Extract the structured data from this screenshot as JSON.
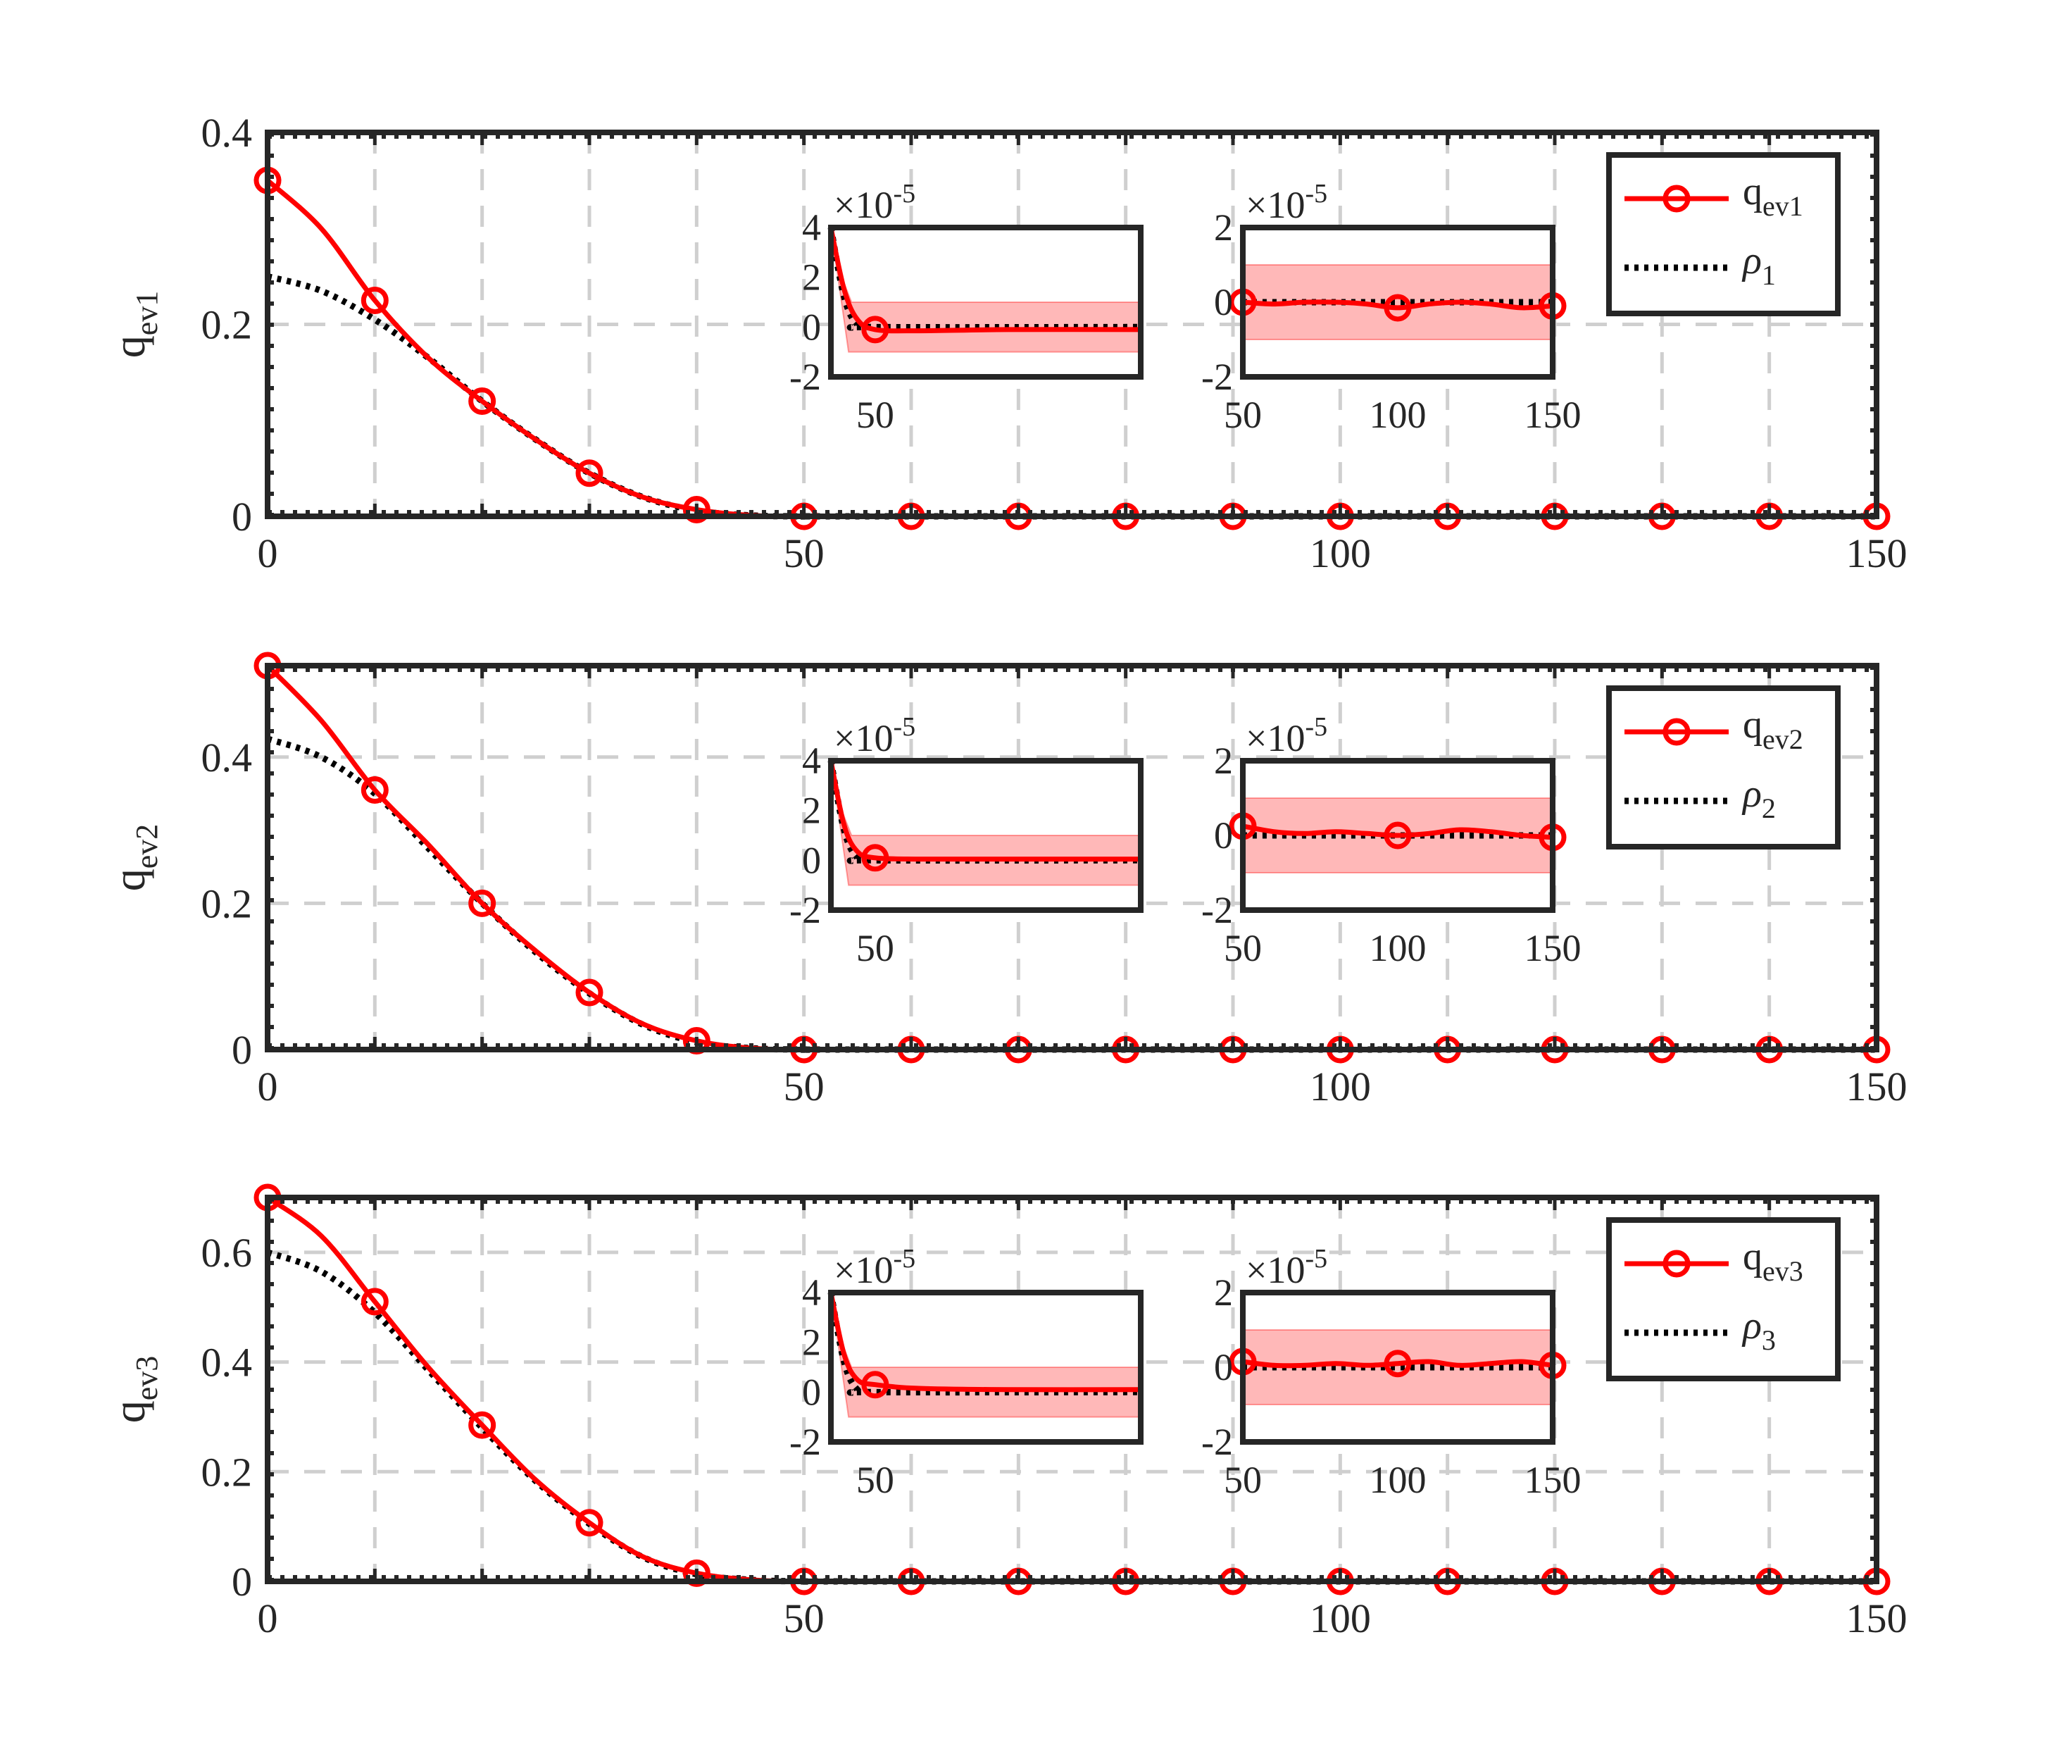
{
  "chart_data": [
    {
      "type": "line",
      "ylabel": "q",
      "ylabel_sub": "ev1",
      "xlim": [
        0,
        150
      ],
      "ylim": [
        0,
        0.4
      ],
      "xticks": [
        "0",
        "50",
        "100",
        "150"
      ],
      "yticks": [
        "0",
        "0.2",
        "0.4"
      ],
      "ytick_values": [
        0,
        0.2,
        0.4
      ],
      "grid": true,
      "legend_position": "top-right",
      "series": [
        {
          "name": "q",
          "name_sub": "ev1",
          "color": "#ff0000",
          "style": "solid-circle-markers",
          "x": [
            0,
            5,
            10,
            15,
            20,
            25,
            30,
            35,
            40,
            45,
            50,
            60,
            70,
            80,
            90,
            100,
            110,
            120,
            130,
            140,
            150
          ],
          "y": [
            0.35,
            0.3,
            0.225,
            0.165,
            0.12,
            0.08,
            0.045,
            0.02,
            0.007,
            0.001,
            0,
            0,
            0,
            0,
            0,
            0,
            0,
            0,
            0,
            0,
            0
          ]
        },
        {
          "name": "ρ",
          "name_sub": "1",
          "color": "#000000",
          "style": "dotted",
          "x": [
            0,
            5,
            10,
            15,
            20,
            25,
            30,
            35,
            40,
            45,
            50,
            60,
            150
          ],
          "y": [
            0.25,
            0.235,
            0.205,
            0.165,
            0.12,
            0.08,
            0.045,
            0.02,
            0.006,
            0.001,
            0,
            0,
            0
          ]
        }
      ],
      "insets": [
        {
          "xticks": [
            "50"
          ],
          "exponent": "×10",
          "exponent_power": "-5",
          "yticks": [
            "4",
            "2",
            "0",
            "-2"
          ],
          "ylim": [
            -2,
            4
          ],
          "xlim": [
            40,
            110
          ],
          "band": [
            -1,
            1
          ],
          "q": {
            "x": [
              40,
              43,
              46,
              50,
              60,
              80,
              110
            ],
            "y": [
              4,
              1.5,
              0.3,
              -0.1,
              -0.15,
              -0.1,
              -0.1
            ]
          },
          "rho": {
            "x": [
              40,
              43,
              46,
              50,
              110
            ],
            "y": [
              4,
              1.2,
              0.1,
              0,
              0
            ]
          },
          "markers_x": [
            50
          ]
        },
        {
          "xticks": [
            "50",
            "100",
            "150"
          ],
          "exponent": "×10",
          "exponent_power": "-5",
          "yticks": [
            "2",
            "0",
            "-2"
          ],
          "ylim": [
            -2,
            2
          ],
          "xlim": [
            50,
            150
          ],
          "band": [
            -1,
            1
          ],
          "q": {
            "x": [
              50,
              60,
              70,
              80,
              90,
              100,
              110,
              120,
              130,
              140,
              150
            ],
            "y": [
              0,
              -0.05,
              0,
              0,
              -0.05,
              -0.15,
              -0.05,
              0,
              -0.05,
              -0.15,
              -0.1
            ]
          },
          "rho": {
            "x": [
              50,
              150
            ],
            "y": [
              0,
              0
            ]
          },
          "markers_x": [
            50,
            100,
            150
          ]
        }
      ]
    },
    {
      "type": "line",
      "ylabel": "q",
      "ylabel_sub": "ev2",
      "xlim": [
        0,
        150
      ],
      "ylim": [
        0,
        0.525
      ],
      "xticks": [
        "0",
        "50",
        "100",
        "150"
      ],
      "yticks": [
        "0",
        "0.2",
        "0.4"
      ],
      "ytick_values": [
        0,
        0.2,
        0.4
      ],
      "grid": true,
      "legend_position": "top-right",
      "series": [
        {
          "name": "q",
          "name_sub": "ev2",
          "color": "#ff0000",
          "style": "solid-circle-markers",
          "x": [
            0,
            5,
            10,
            15,
            20,
            25,
            30,
            35,
            40,
            45,
            50,
            60,
            70,
            80,
            90,
            100,
            110,
            120,
            130,
            140,
            150
          ],
          "y": [
            0.525,
            0.45,
            0.355,
            0.28,
            0.2,
            0.135,
            0.078,
            0.035,
            0.012,
            0.002,
            0,
            0,
            0,
            0,
            0,
            0,
            0,
            0,
            0,
            0,
            0
          ]
        },
        {
          "name": "ρ",
          "name_sub": "2",
          "color": "#000000",
          "style": "dotted",
          "x": [
            0,
            5,
            10,
            15,
            20,
            25,
            30,
            35,
            40,
            45,
            50,
            60,
            150
          ],
          "y": [
            0.425,
            0.4,
            0.35,
            0.275,
            0.2,
            0.133,
            0.077,
            0.034,
            0.01,
            0.002,
            0,
            0,
            0
          ]
        }
      ],
      "insets": [
        {
          "xticks": [
            "50"
          ],
          "exponent": "×10",
          "exponent_power": "-5",
          "yticks": [
            "4",
            "2",
            "0",
            "-2"
          ],
          "ylim": [
            -2,
            4
          ],
          "xlim": [
            40,
            110
          ],
          "band": [
            -1,
            1
          ],
          "q": {
            "x": [
              40,
              43,
              46,
              50,
              60,
              80,
              110
            ],
            "y": [
              4,
              1.4,
              0.35,
              0.1,
              0.05,
              0.05,
              0.05
            ]
          },
          "rho": {
            "x": [
              40,
              43,
              46,
              50,
              110
            ],
            "y": [
              4,
              1.2,
              0.1,
              0,
              0
            ]
          },
          "markers_x": [
            50
          ]
        },
        {
          "xticks": [
            "50",
            "100",
            "150"
          ],
          "exponent": "×10",
          "exponent_power": "-5",
          "yticks": [
            "2",
            "0",
            "-2"
          ],
          "ylim": [
            -2,
            2
          ],
          "xlim": [
            50,
            150
          ],
          "band": [
            -1,
            1
          ],
          "q": {
            "x": [
              50,
              60,
              70,
              80,
              90,
              100,
              110,
              120,
              130,
              140,
              150
            ],
            "y": [
              0.25,
              0.1,
              0.05,
              0.1,
              0.05,
              0,
              0.05,
              0.15,
              0.1,
              0,
              -0.05
            ]
          },
          "rho": {
            "x": [
              50,
              150
            ],
            "y": [
              0,
              0
            ]
          },
          "markers_x": [
            50,
            100,
            150
          ]
        }
      ]
    },
    {
      "type": "line",
      "ylabel": "q",
      "ylabel_sub": "ev3",
      "xlim": [
        0,
        150
      ],
      "ylim": [
        0,
        0.7
      ],
      "xticks": [
        "0",
        "50",
        "100",
        "150"
      ],
      "yticks": [
        "0",
        "0.2",
        "0.4",
        "0.6"
      ],
      "ytick_values": [
        0,
        0.2,
        0.4,
        0.6
      ],
      "grid": true,
      "legend_position": "top-right",
      "series": [
        {
          "name": "q",
          "name_sub": "ev3",
          "color": "#ff0000",
          "style": "solid-circle-markers",
          "x": [
            0,
            5,
            10,
            15,
            20,
            25,
            30,
            35,
            40,
            45,
            50,
            60,
            70,
            80,
            90,
            100,
            110,
            120,
            130,
            140,
            150
          ],
          "y": [
            0.7,
            0.63,
            0.51,
            0.39,
            0.285,
            0.185,
            0.107,
            0.045,
            0.015,
            0.003,
            0,
            0,
            0,
            0,
            0,
            0,
            0,
            0,
            0,
            0,
            0
          ]
        },
        {
          "name": "ρ",
          "name_sub": "3",
          "color": "#000000",
          "style": "dotted",
          "x": [
            0,
            5,
            10,
            15,
            20,
            25,
            30,
            35,
            40,
            45,
            50,
            60,
            150
          ],
          "y": [
            0.6,
            0.565,
            0.49,
            0.385,
            0.28,
            0.183,
            0.105,
            0.044,
            0.013,
            0.003,
            0,
            0,
            0
          ]
        }
      ],
      "insets": [
        {
          "xticks": [
            "50"
          ],
          "exponent": "×10",
          "exponent_power": "-5",
          "yticks": [
            "4",
            "2",
            "0",
            "-2"
          ],
          "ylim": [
            -2,
            4
          ],
          "xlim": [
            40,
            110
          ],
          "band": [
            -1,
            1
          ],
          "q": {
            "x": [
              40,
              43,
              46,
              50,
              60,
              80,
              110
            ],
            "y": [
              4,
              1.5,
              0.5,
              0.3,
              0.15,
              0.1,
              0.1
            ]
          },
          "rho": {
            "x": [
              40,
              43,
              46,
              50,
              110
            ],
            "y": [
              4,
              1.2,
              0.1,
              0,
              0
            ]
          },
          "markers_x": [
            50
          ]
        },
        {
          "xticks": [
            "50",
            "100",
            "150"
          ],
          "exponent": "×10",
          "exponent_power": "-5",
          "yticks": [
            "2",
            "0",
            "-2"
          ],
          "ylim": [
            -2,
            2
          ],
          "xlim": [
            50,
            150
          ],
          "band": [
            -1,
            1
          ],
          "q": {
            "x": [
              50,
              60,
              70,
              80,
              90,
              100,
              110,
              120,
              130,
              140,
              150
            ],
            "y": [
              0.15,
              0.05,
              0.05,
              0.1,
              0.05,
              0.1,
              0.15,
              0.05,
              0.1,
              0.15,
              0.05
            ]
          },
          "rho": {
            "x": [
              50,
              150
            ],
            "y": [
              0,
              0
            ]
          },
          "markers_x": [
            50,
            100,
            150
          ]
        }
      ]
    }
  ]
}
